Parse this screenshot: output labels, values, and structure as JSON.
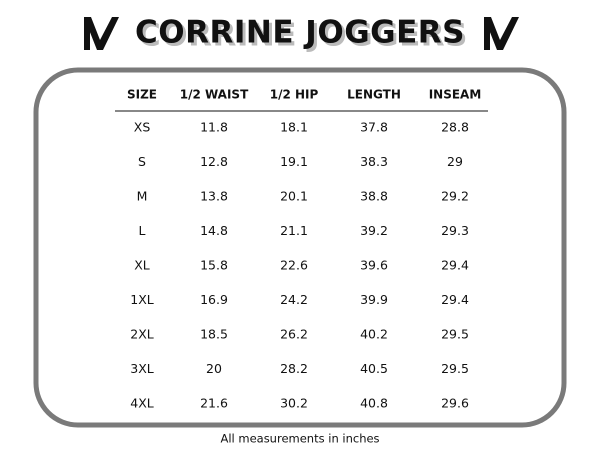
{
  "header": {
    "title": "CORRINE JOGGERS"
  },
  "table": {
    "headers": [
      "SIZE",
      "1/2 WAIST",
      "1/2 HIP",
      "LENGTH",
      "INSEAM"
    ],
    "rows": [
      [
        "XS",
        11.8,
        18.1,
        37.8,
        28.8
      ],
      [
        "S",
        12.8,
        19.1,
        38.3,
        29
      ],
      [
        "M",
        13.8,
        20.1,
        38.8,
        29.2
      ],
      [
        "L",
        14.8,
        21.1,
        39.2,
        29.3
      ],
      [
        "XL",
        15.8,
        22.6,
        39.6,
        29.4
      ],
      [
        "1XL",
        16.9,
        24.2,
        39.9,
        29.4
      ],
      [
        "2XL",
        18.5,
        26.2,
        40.2,
        29.5
      ],
      [
        "3XL",
        20,
        28.2,
        40.5,
        29.5
      ],
      [
        "4XL",
        21.6,
        30.2,
        40.8,
        29.6
      ]
    ]
  },
  "footer": {
    "note": "All measurements in inches"
  }
}
